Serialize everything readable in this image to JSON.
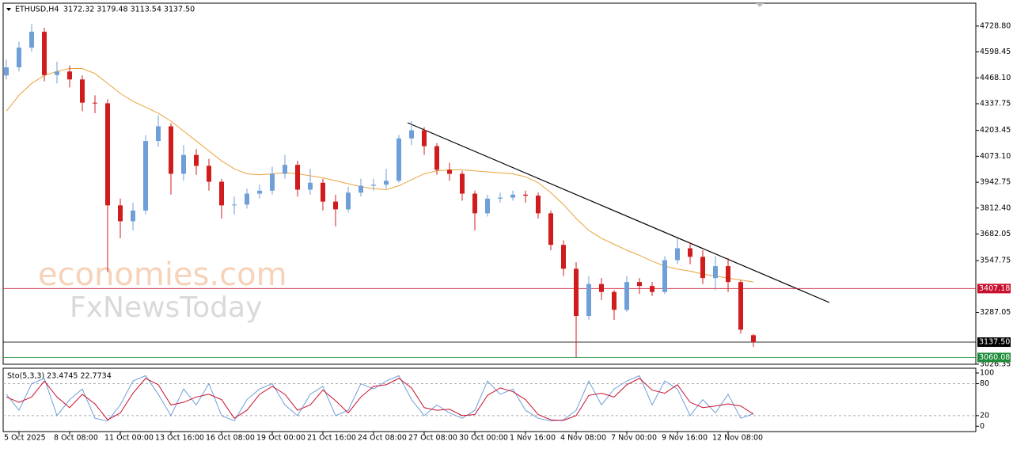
{
  "chart_data": {
    "type": "candlestick",
    "symbol": "ETHUSD,H4",
    "quote": "3172.32 3179.48 3113.54 3137.50",
    "watermark": [
      "economies.com",
      "FxNewsToday"
    ],
    "categories": [
      null,
      "5 Oct 2025",
      null,
      null,
      null,
      "8 Oct 08:00",
      null,
      null,
      null,
      "11 Oct 00:00",
      null,
      null,
      null,
      "13 Oct 16:00",
      null,
      null,
      null,
      "16 Oct 08:00",
      null,
      null,
      null,
      "19 Oct 00:00",
      null,
      null,
      null,
      "21 Oct 16:00",
      null,
      null,
      null,
      "24 Oct 08:00",
      null,
      null,
      null,
      "27 Oct 08:00",
      null,
      null,
      null,
      "30 Oct 00:00",
      null,
      null,
      null,
      "1 Nov 16:00",
      null,
      null,
      null,
      "4 Nov 08:00",
      null,
      null,
      null,
      "7 Nov 00:00",
      null,
      null,
      null,
      "9 Nov 16:00",
      null,
      null,
      null,
      "12 Nov 08:00",
      null,
      null
    ],
    "open": [
      4480,
      4521,
      4620,
      4700,
      4482,
      4500,
      4460,
      4343,
      4340,
      3826,
      3746,
      3800,
      4150,
      4224,
      3985,
      4080,
      4025,
      3945,
      3826,
      3830,
      3885,
      3900,
      3985,
      4030,
      3905,
      3940,
      3845,
      3806,
      3890,
      3925,
      3930,
      3950,
      4163,
      4204,
      4124,
      4005,
      3985,
      3885,
      3786,
      3860,
      3865,
      3880,
      3875,
      3786,
      3627,
      3507,
      3269,
      3430,
      3390,
      3300,
      3440,
      3420,
      3390,
      3550,
      3610,
      3567,
      3460,
      3520,
      3440,
      3172.32
    ],
    "high": [
      4560,
      4650,
      4740,
      4720,
      4550,
      4530,
      4480,
      4380,
      4360,
      3860,
      3840,
      4180,
      4280,
      4240,
      4130,
      4110,
      4060,
      3960,
      3870,
      3910,
      3930,
      4020,
      4080,
      4050,
      4010,
      3960,
      3880,
      3920,
      3960,
      3960,
      4010,
      4180,
      4250,
      4220,
      4140,
      4040,
      4000,
      3900,
      3880,
      3890,
      3900,
      3900,
      3890,
      3800,
      3650,
      3540,
      3470,
      3460,
      3400,
      3470,
      3460,
      3440,
      3570,
      3660,
      3640,
      3600,
      3570,
      3560,
      3450,
      3179.48
    ],
    "low": [
      4460,
      4500,
      4600,
      4450,
      4440,
      4420,
      4300,
      4290,
      3490,
      3660,
      3700,
      3780,
      4120,
      3880,
      3950,
      3980,
      3900,
      3760,
      3780,
      3810,
      3860,
      3880,
      3960,
      3870,
      3880,
      3800,
      3720,
      3790,
      3870,
      3900,
      3910,
      3940,
      4130,
      4080,
      3980,
      3950,
      3850,
      3700,
      3770,
      3840,
      3850,
      3840,
      3760,
      3600,
      3470,
      3060,
      3250,
      3350,
      3250,
      3290,
      3380,
      3370,
      3380,
      3530,
      3530,
      3430,
      3400,
      3390,
      3180,
      3113.54
    ],
    "close": [
      4521,
      4620,
      4700,
      4482,
      4500,
      4460,
      4343,
      4340,
      3826,
      3746,
      3800,
      4150,
      4224,
      3985,
      4080,
      4025,
      3945,
      3826,
      3830,
      3885,
      3900,
      3985,
      4030,
      3905,
      3940,
      3845,
      3806,
      3890,
      3925,
      3930,
      3950,
      4163,
      4204,
      4124,
      4005,
      3985,
      3885,
      3786,
      3860,
      3865,
      3880,
      3875,
      3786,
      3627,
      3507,
      3269,
      3430,
      3390,
      3300,
      3440,
      3420,
      3390,
      3550,
      3610,
      3567,
      3460,
      3520,
      3440,
      3200,
      3137.5
    ],
    "up_color": "#6f9fd8",
    "down_color": "#d01c1c",
    "ma": {
      "color": "#e8a33c",
      "values": [
        4300,
        4380,
        4440,
        4480,
        4500,
        4515,
        4515,
        4490,
        4440,
        4390,
        4350,
        4320,
        4290,
        4250,
        4200,
        4150,
        4100,
        4050,
        4010,
        3985,
        3980,
        3985,
        3990,
        3985,
        3975,
        3965,
        3950,
        3935,
        3920,
        3910,
        3905,
        3925,
        3955,
        3985,
        4000,
        4005,
        4005,
        4000,
        3995,
        3990,
        3985,
        3970,
        3940,
        3890,
        3830,
        3760,
        3700,
        3660,
        3630,
        3600,
        3575,
        3545,
        3520,
        3505,
        3495,
        3480,
        3470,
        3460,
        3450,
        3440
      ]
    },
    "ylim": [
      3026,
      4844
    ],
    "yticks": [
      {
        "value": 4728.8,
        "label": "4728.80"
      },
      4598.45,
      {
        "value": 4468.1,
        "label": "4468.10"
      },
      4337.75,
      4203.45,
      {
        "value": 4073.1,
        "label": "4073.10"
      },
      3942.75,
      {
        "value": 3812.4,
        "label": "3812.40"
      },
      3682.05,
      3547.75,
      3287.05,
      3026.35
    ],
    "levels": [
      {
        "value": 3407.18,
        "label": "3407.18",
        "color": "#c8102e"
      },
      {
        "value": 3137.5,
        "label": "3137.50",
        "color": "#000000"
      },
      {
        "value": 3060.08,
        "label": "3060.08",
        "color": "#1e8c3a"
      }
    ],
    "stochastic": {
      "title": "Sto(5,3,3) 23.4745 22.7734",
      "ylim": [
        -10,
        109
      ],
      "yticks": [
        100,
        80,
        20,
        0
      ],
      "dashed": [
        80,
        20
      ],
      "series": [
        {
          "color": "#6f9fd8",
          "values": [
            60,
            30,
            80,
            90,
            20,
            50,
            70,
            15,
            10,
            40,
            85,
            95,
            60,
            20,
            70,
            40,
            80,
            20,
            10,
            50,
            70,
            80,
            40,
            20,
            60,
            75,
            20,
            30,
            80,
            70,
            85,
            95,
            50,
            20,
            40,
            25,
            15,
            30,
            85,
            60,
            70,
            30,
            15,
            10,
            12,
            30,
            85,
            40,
            70,
            85,
            95,
            40,
            85,
            70,
            20,
            50,
            25,
            60,
            15,
            23.4745
          ]
        },
        {
          "color": "#c8102e",
          "values": [
            55,
            45,
            55,
            85,
            55,
            35,
            60,
            42,
            12,
            25,
            62,
            90,
            78,
            40,
            45,
            55,
            60,
            50,
            15,
            30,
            60,
            75,
            60,
            30,
            40,
            68,
            48,
            25,
            55,
            75,
            78,
            90,
            72,
            35,
            30,
            32,
            20,
            22,
            58,
            72,
            65,
            50,
            22,
            12,
            11,
            20,
            58,
            62,
            55,
            78,
            90,
            68,
            62,
            78,
            45,
            35,
            38,
            42,
            38,
            22.7734
          ]
        }
      ]
    }
  }
}
